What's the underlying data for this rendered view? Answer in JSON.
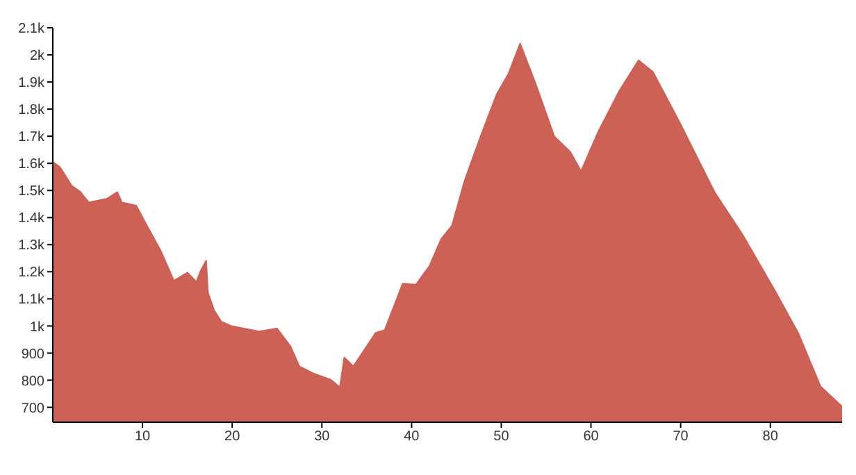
{
  "chart_data": {
    "type": "area",
    "color": "#cd6155",
    "x": [
      0,
      0.8,
      2.1,
      3.1,
      4,
      6,
      7.2,
      7.7,
      9.3,
      10.5,
      12,
      13,
      13.5,
      15,
      16,
      16.5,
      17.1,
      17.3,
      18,
      18.8,
      20,
      23,
      25,
      26.5,
      27.5,
      29,
      31,
      32,
      32.5,
      33.5,
      36,
      37,
      39,
      40.5,
      42,
      43.3,
      44.5,
      45.9,
      47.7,
      49.5,
      50.8,
      52.1,
      53.8,
      55.9,
      57.7,
      58.9,
      60.8,
      63.1,
      65.3,
      66.9,
      69.8,
      73.8,
      76.9,
      80.5,
      83.1,
      85.6,
      88
    ],
    "values": [
      1605,
      1586,
      1518,
      1494,
      1456,
      1469,
      1494,
      1456,
      1444,
      1370,
      1280,
      1205,
      1167,
      1197,
      1163,
      1205,
      1241,
      1123,
      1057,
      1016,
      999,
      980,
      991,
      925,
      851,
      826,
      802,
      774,
      884,
      851,
      975,
      985,
      1156,
      1153,
      1222,
      1321,
      1370,
      1535,
      1700,
      1856,
      1930,
      2042,
      1897,
      1700,
      1642,
      1571,
      1716,
      1864,
      1980,
      1938,
      1757,
      1493,
      1337,
      1131,
      975,
      777,
      703
    ],
    "xlim": [
      0,
      88
    ],
    "xticks": [
      10,
      20,
      30,
      40,
      50,
      60,
      70,
      80
    ],
    "ylim": [
      645,
      2100
    ],
    "yticks": [
      700,
      800,
      900,
      {
        "value": 1000,
        "label": "1k"
      },
      {
        "value": 1100,
        "label": "1.1k"
      },
      {
        "value": 1200,
        "label": "1.2k"
      },
      {
        "value": 1300,
        "label": "1.3k"
      },
      {
        "value": 1400,
        "label": "1.4k"
      },
      {
        "value": 1500,
        "label": "1.5k"
      },
      {
        "value": 1600,
        "label": "1.6k"
      },
      {
        "value": 1700,
        "label": "1.7k"
      },
      {
        "value": 1800,
        "label": "1.8k"
      },
      {
        "value": 1900,
        "label": "1.9k"
      },
      {
        "value": 2000,
        "label": "2k"
      },
      {
        "value": 2100,
        "label": "2.1k"
      }
    ]
  }
}
